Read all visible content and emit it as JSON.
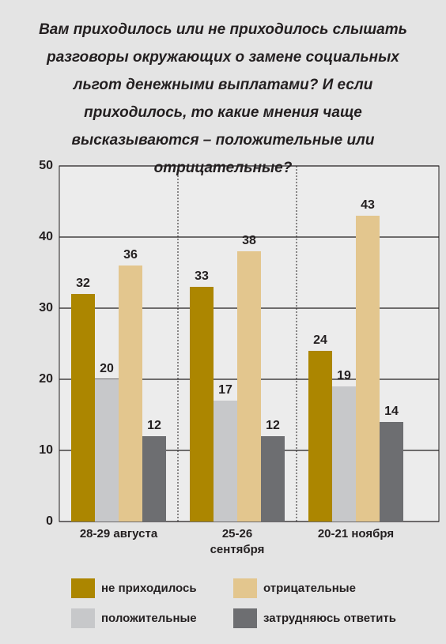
{
  "chart_data": {
    "type": "bar",
    "title": "Вам приходилось или не приходилось слышать разговоры окружающих о замене социальных льгот денежными выплатами? И если приходилось, то какие мнения чаще высказываются – положительные или отрицательные?",
    "categories": [
      "28-29 августа",
      "25-26 сентября",
      "20-21 ноября"
    ],
    "series": [
      {
        "name": "не приходилось",
        "color": "#ac8600",
        "values": [
          32,
          33,
          24
        ]
      },
      {
        "name": "положительные",
        "color": "#c7c8ca",
        "values": [
          20,
          17,
          19
        ]
      },
      {
        "name": "отрицательные",
        "color": "#e3c68e",
        "values": [
          36,
          38,
          43
        ]
      },
      {
        "name": "затрудняюсь ответить",
        "color": "#6d6e71",
        "values": [
          12,
          12,
          14
        ]
      }
    ],
    "ylim": [
      0,
      50
    ],
    "yticks": [
      0,
      10,
      20,
      30,
      40,
      50
    ],
    "grid": true
  }
}
